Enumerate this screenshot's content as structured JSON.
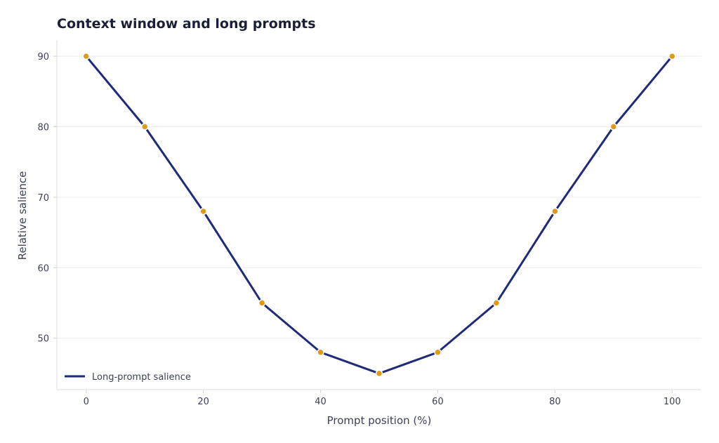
{
  "chart_data": {
    "type": "line",
    "title": "Context window and long prompts",
    "xlabel": "Prompt position (%)",
    "ylabel": "Relative salience",
    "xlim": [
      -5,
      105
    ],
    "ylim": [
      42.7,
      92.3
    ],
    "xticks": [
      0,
      20,
      40,
      60,
      80,
      100
    ],
    "yticks": [
      50,
      60,
      70,
      80,
      90
    ],
    "grid": "horizontal",
    "legend_position": "bottom-left",
    "colors": {
      "line": "#1f2a78",
      "marker": "#e09a1a",
      "marker_edge": "#ffffff",
      "grid": "#eeeeee",
      "axis": "#dddddd"
    },
    "x": [
      0,
      10,
      20,
      30,
      40,
      50,
      60,
      70,
      80,
      90,
      100
    ],
    "series": [
      {
        "name": "Long-prompt salience",
        "values": [
          90,
          80,
          68,
          55,
          48,
          45,
          48,
          55,
          68,
          80,
          90
        ]
      }
    ]
  }
}
